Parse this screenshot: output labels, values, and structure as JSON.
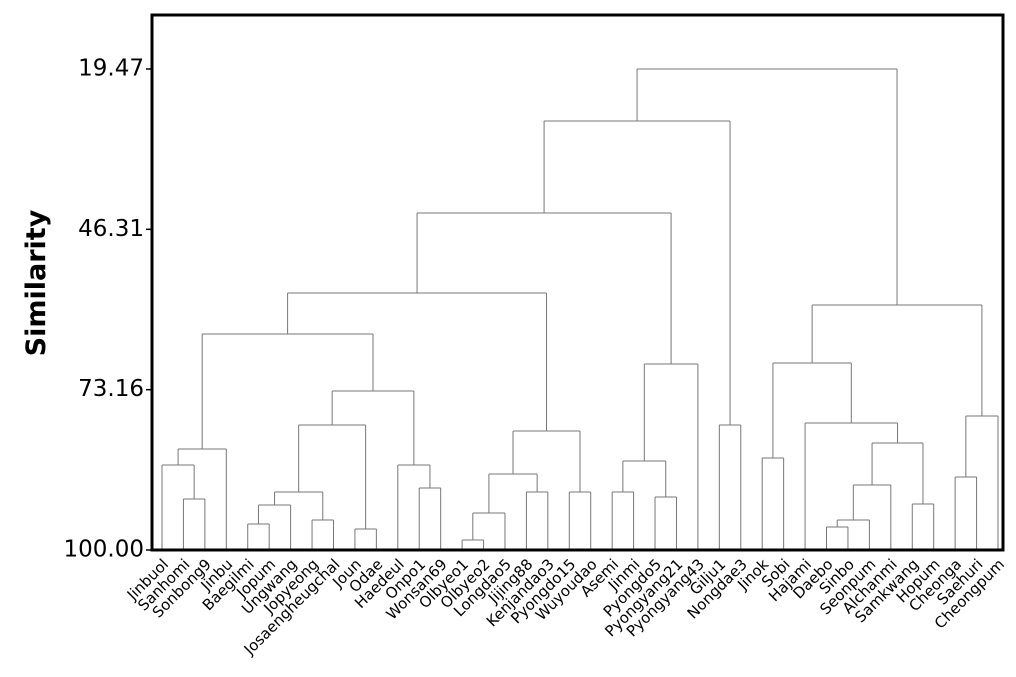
{
  "chart_data": {
    "type": "dendrogram",
    "ylabel": "Similarity",
    "ylim": [
      100,
      10.43
    ],
    "yticks": [
      {
        "value": 100,
        "label": "100.00"
      },
      73.16,
      46.31,
      19.47
    ],
    "color": "#777777",
    "leaves": [
      "Jinbuol",
      "Sanhomi",
      "Sonbong9",
      "Jinbu",
      "Baegilmi",
      "Jopum",
      "Ungwang",
      "Jopyeong",
      "Josaengheugchal",
      "Joun",
      "Odae",
      "Haedeul",
      "Onpo1",
      "Wonsan69",
      "Olbyeo1",
      "Olbyeo2",
      "Longdao5",
      "Jijing88",
      "Kenjandao3",
      "Pyongdo15",
      "Wuyoudao",
      "Asemi",
      "Jinmi",
      "Pyongdo5",
      "Pyongyang21",
      "Pyongyang43",
      "Gilju1",
      "Nongdae3",
      "Jinok",
      "Sobi",
      "Hajami",
      "Daebo",
      "Sinbo",
      "Seonpum",
      "Alchanmi",
      "Samkwang",
      "Hopum",
      "Cheonga",
      "Saehuri",
      "Cheongpum"
    ],
    "merges": [
      {
        "children": [
          1,
          2
        ],
        "height": 91.46
      },
      {
        "children": [
          0,
          40
        ],
        "height": 85.77
      },
      {
        "children": [
          41,
          3
        ],
        "height": 83.09
      },
      {
        "children": [
          4,
          5
        ],
        "height": 95.65
      },
      {
        "children": [
          43,
          6
        ],
        "height": 92.47
      },
      {
        "children": [
          7,
          8
        ],
        "height": 94.98
      },
      {
        "children": [
          44,
          45
        ],
        "height": 90.29
      },
      {
        "children": [
          9,
          10
        ],
        "height": 96.48
      },
      {
        "children": [
          46,
          47
        ],
        "height": 79.07
      },
      {
        "children": [
          12,
          13
        ],
        "height": 89.62
      },
      {
        "children": [
          11,
          49
        ],
        "height": 85.77
      },
      {
        "children": [
          48,
          50
        ],
        "height": 73.38
      },
      {
        "children": [
          42,
          51
        ],
        "height": 63.84
      },
      {
        "children": [
          14,
          15
        ],
        "height": 98.33
      },
      {
        "children": [
          53,
          16
        ],
        "height": 93.81
      },
      {
        "children": [
          17,
          18
        ],
        "height": 90.29
      },
      {
        "children": [
          54,
          55
        ],
        "height": 87.28
      },
      {
        "children": [
          19,
          20
        ],
        "height": 90.29
      },
      {
        "children": [
          56,
          57
        ],
        "height": 80.08
      },
      {
        "children": [
          52,
          58
        ],
        "height": 56.97
      },
      {
        "children": [
          21,
          22
        ],
        "height": 90.29
      },
      {
        "children": [
          23,
          24
        ],
        "height": 91.13
      },
      {
        "children": [
          60,
          61
        ],
        "height": 85.1
      },
      {
        "children": [
          62,
          25
        ],
        "height": 68.86
      },
      {
        "children": [
          59,
          63
        ],
        "height": 43.58
      },
      {
        "children": [
          26,
          27
        ],
        "height": 79.07
      },
      {
        "children": [
          64,
          65
        ],
        "height": 28.18
      },
      {
        "children": [
          28,
          29
        ],
        "height": 84.6
      },
      {
        "children": [
          31,
          32
        ],
        "height": 96.15
      },
      {
        "children": [
          68,
          33
        ],
        "height": 94.98
      },
      {
        "children": [
          69,
          34
        ],
        "height": 89.12
      },
      {
        "children": [
          35,
          36
        ],
        "height": 92.3
      },
      {
        "children": [
          70,
          71
        ],
        "height": 82.09
      },
      {
        "children": [
          30,
          72
        ],
        "height": 78.74
      },
      {
        "children": [
          67,
          73
        ],
        "height": 68.69
      },
      {
        "children": [
          37,
          38
        ],
        "height": 87.78
      },
      {
        "children": [
          75,
          39
        ],
        "height": 77.57
      },
      {
        "children": [
          74,
          76
        ],
        "height": 58.98
      },
      {
        "children": [
          66,
          77
        ],
        "height": 19.47
      }
    ]
  }
}
